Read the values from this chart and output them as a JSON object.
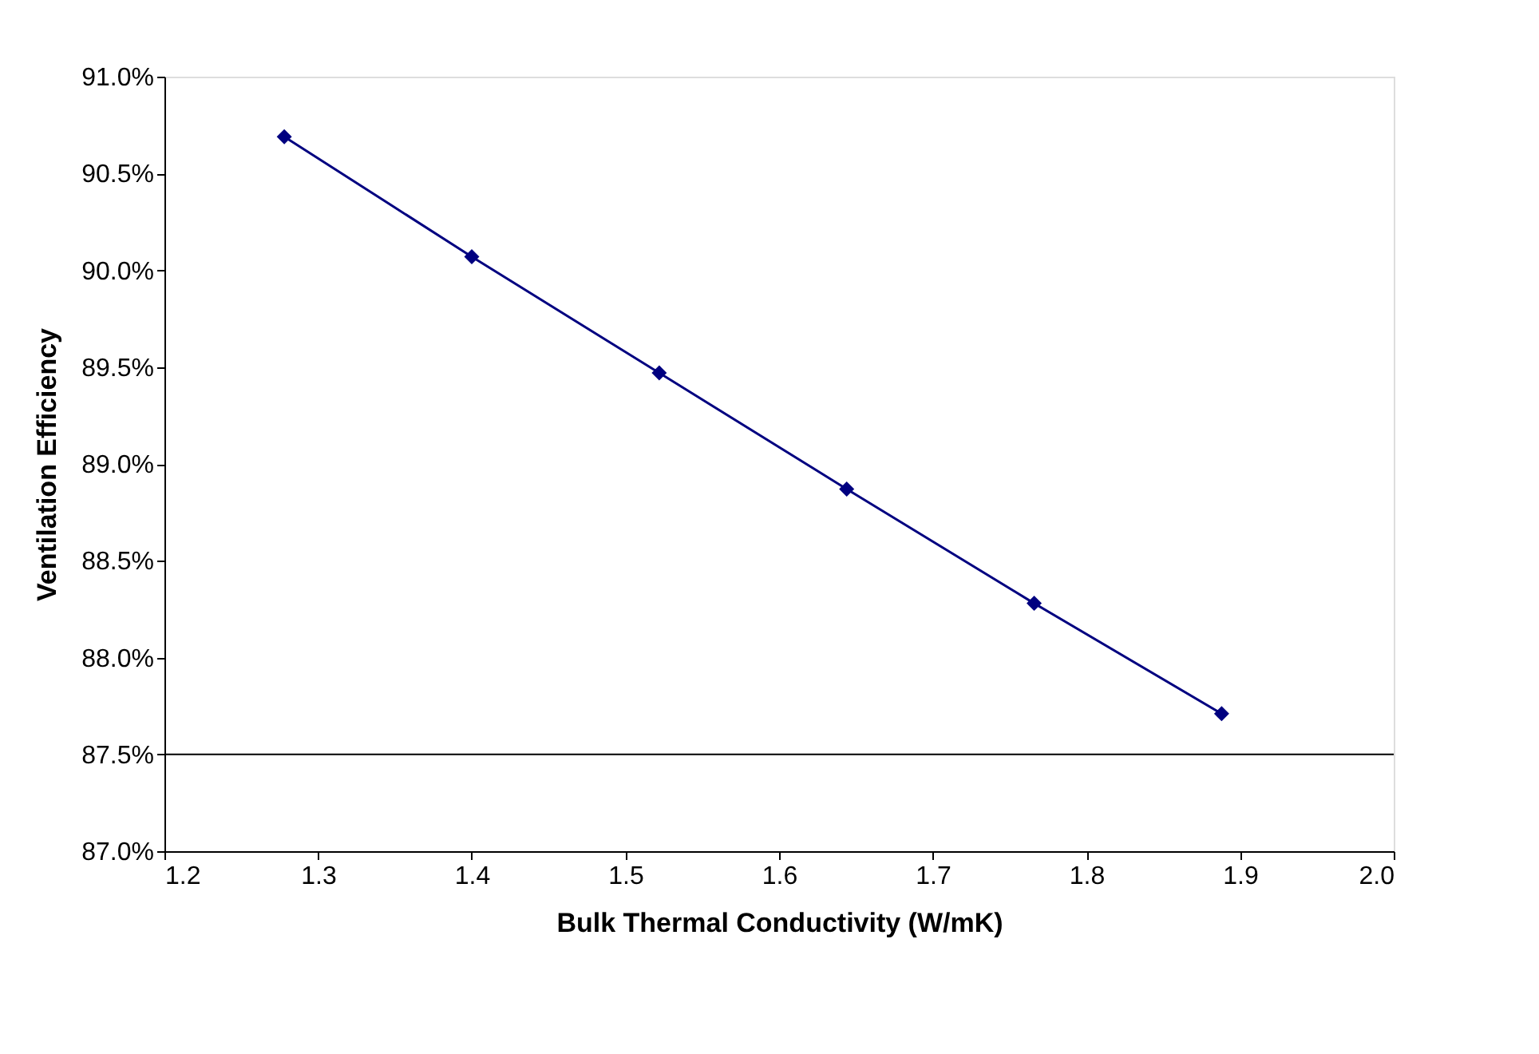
{
  "chart_data": {
    "type": "line",
    "xlabel": "Bulk Thermal Conductivity (W/mK)",
    "ylabel": "Ventilation Efficiency",
    "x": [
      1.278,
      1.4,
      1.522,
      1.644,
      1.766,
      1.888
    ],
    "series": [
      {
        "color": "#000080",
        "values": [
          90.69,
          90.07,
          89.47,
          88.87,
          88.28,
          87.71
        ]
      }
    ],
    "marker": "diamond",
    "line_style": "solid",
    "grid": false,
    "xlim": [
      1.2,
      2.0
    ],
    "xticks": [
      1.2,
      1.3,
      1.4,
      1.5,
      1.6,
      1.7,
      1.8,
      1.9,
      {
        "value": 2.0,
        "label": "2.0"
      }
    ],
    "ylim": [
      87.0,
      91.0
    ],
    "yticks": [
      {
        "value": 87.0,
        "label": "87.0%"
      },
      {
        "value": 87.5,
        "label": "87.5%"
      },
      {
        "value": 88.0,
        "label": "88.0%"
      },
      {
        "value": 88.5,
        "label": "88.5%"
      },
      {
        "value": 89.0,
        "label": "89.0%"
      },
      {
        "value": 89.5,
        "label": "89.5%"
      },
      {
        "value": 90.0,
        "label": "90.0%"
      },
      {
        "value": 90.5,
        "label": "90.5%"
      },
      {
        "value": 91.0,
        "label": "91.0%"
      }
    ],
    "ref_lines": [
      {
        "axis": "y",
        "value": 87.5,
        "color": "#000000",
        "line_style": "solid"
      }
    ]
  }
}
